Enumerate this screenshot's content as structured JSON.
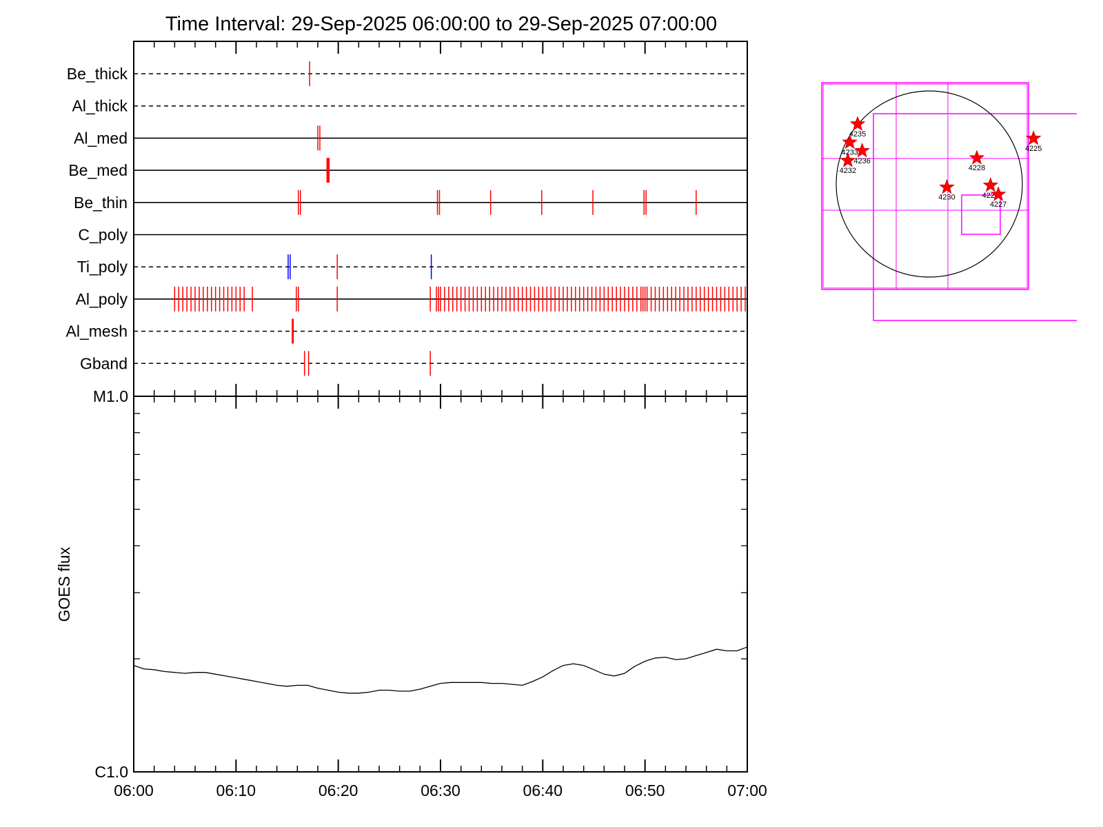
{
  "title": "Time Interval: 29-Sep-2025 06:00:00 to 29-Sep-2025 07:00:00",
  "colors": {
    "red": "#ff0000",
    "blue": "#0000ff",
    "magenta": "#ff00ff",
    "black": "#000000"
  },
  "chart_data": [
    {
      "type": "event-raster",
      "title": "Time Interval: 29-Sep-2025 06:00:00 to 29-Sep-2025 07:00:00",
      "x_unit": "minutes after 06:00",
      "xlim": [
        0,
        60
      ],
      "rows": [
        {
          "name": "Be_thick",
          "line": "dashed",
          "events": [
            {
              "t": 17.2,
              "color": "red"
            }
          ]
        },
        {
          "name": "Al_thick",
          "line": "dashed",
          "events": []
        },
        {
          "name": "Al_med",
          "line": "solid",
          "events": [
            {
              "t": 18.0,
              "color": "red"
            },
            {
              "t": 18.2,
              "color": "red"
            }
          ]
        },
        {
          "name": "Be_med",
          "line": "solid",
          "events": [
            {
              "t": 18.9,
              "color": "red"
            },
            {
              "t": 19.0,
              "color": "red"
            },
            {
              "t": 19.1,
              "color": "red"
            }
          ]
        },
        {
          "name": "Be_thin",
          "line": "solid",
          "events": [
            {
              "t": 16.1,
              "color": "red"
            },
            {
              "t": 16.3,
              "color": "red"
            },
            {
              "t": 29.7,
              "color": "red"
            },
            {
              "t": 29.9,
              "color": "red"
            },
            {
              "t": 34.9,
              "color": "red"
            },
            {
              "t": 39.9,
              "color": "red"
            },
            {
              "t": 44.9,
              "color": "red"
            },
            {
              "t": 49.9,
              "color": "red"
            },
            {
              "t": 50.1,
              "color": "red"
            },
            {
              "t": 55.0,
              "color": "red"
            }
          ]
        },
        {
          "name": "C_poly",
          "line": "solid",
          "events": []
        },
        {
          "name": "Ti_poly",
          "line": "dashed",
          "events": [
            {
              "t": 15.1,
              "color": "blue"
            },
            {
              "t": 15.3,
              "color": "blue"
            },
            {
              "t": 19.9,
              "color": "red"
            },
            {
              "t": 29.1,
              "color": "blue"
            }
          ]
        },
        {
          "name": "Al_poly",
          "line": "solid",
          "events": [
            {
              "t": 4.0,
              "color": "red"
            },
            {
              "t": 4.4,
              "color": "red"
            },
            {
              "t": 4.8,
              "color": "red"
            },
            {
              "t": 5.2,
              "color": "red"
            },
            {
              "t": 5.6,
              "color": "red"
            },
            {
              "t": 6.0,
              "color": "red"
            },
            {
              "t": 6.4,
              "color": "red"
            },
            {
              "t": 6.8,
              "color": "red"
            },
            {
              "t": 7.2,
              "color": "red"
            },
            {
              "t": 7.6,
              "color": "red"
            },
            {
              "t": 8.0,
              "color": "red"
            },
            {
              "t": 8.4,
              "color": "red"
            },
            {
              "t": 8.8,
              "color": "red"
            },
            {
              "t": 9.2,
              "color": "red"
            },
            {
              "t": 9.6,
              "color": "red"
            },
            {
              "t": 10.0,
              "color": "red"
            },
            {
              "t": 10.4,
              "color": "red"
            },
            {
              "t": 10.8,
              "color": "red"
            },
            {
              "t": 11.6,
              "color": "red"
            },
            {
              "t": 15.9,
              "color": "red"
            },
            {
              "t": 16.1,
              "color": "red"
            },
            {
              "t": 19.9,
              "color": "red"
            },
            {
              "t": 29.0,
              "color": "red"
            },
            {
              "t": 29.6,
              "color": "red"
            },
            {
              "t": 29.8,
              "color": "red"
            },
            {
              "t": 30.0,
              "color": "red"
            },
            {
              "t": 30.4,
              "color": "red"
            },
            {
              "t": 30.8,
              "color": "red"
            },
            {
              "t": 31.2,
              "color": "red"
            },
            {
              "t": 31.6,
              "color": "red"
            },
            {
              "t": 32.0,
              "color": "red"
            },
            {
              "t": 32.4,
              "color": "red"
            },
            {
              "t": 32.8,
              "color": "red"
            },
            {
              "t": 33.2,
              "color": "red"
            },
            {
              "t": 33.6,
              "color": "red"
            },
            {
              "t": 34.0,
              "color": "red"
            },
            {
              "t": 34.4,
              "color": "red"
            },
            {
              "t": 34.8,
              "color": "red"
            },
            {
              "t": 35.2,
              "color": "red"
            },
            {
              "t": 35.6,
              "color": "red"
            },
            {
              "t": 36.0,
              "color": "red"
            },
            {
              "t": 36.4,
              "color": "red"
            },
            {
              "t": 36.8,
              "color": "red"
            },
            {
              "t": 37.2,
              "color": "red"
            },
            {
              "t": 37.6,
              "color": "red"
            },
            {
              "t": 38.0,
              "color": "red"
            },
            {
              "t": 38.4,
              "color": "red"
            },
            {
              "t": 38.8,
              "color": "red"
            },
            {
              "t": 39.2,
              "color": "red"
            },
            {
              "t": 39.6,
              "color": "red"
            },
            {
              "t": 40.0,
              "color": "red"
            },
            {
              "t": 40.4,
              "color": "red"
            },
            {
              "t": 40.8,
              "color": "red"
            },
            {
              "t": 41.2,
              "color": "red"
            },
            {
              "t": 41.6,
              "color": "red"
            },
            {
              "t": 42.0,
              "color": "red"
            },
            {
              "t": 42.4,
              "color": "red"
            },
            {
              "t": 42.8,
              "color": "red"
            },
            {
              "t": 43.2,
              "color": "red"
            },
            {
              "t": 43.6,
              "color": "red"
            },
            {
              "t": 44.0,
              "color": "red"
            },
            {
              "t": 44.4,
              "color": "red"
            },
            {
              "t": 44.8,
              "color": "red"
            },
            {
              "t": 45.2,
              "color": "red"
            },
            {
              "t": 45.6,
              "color": "red"
            },
            {
              "t": 46.0,
              "color": "red"
            },
            {
              "t": 46.4,
              "color": "red"
            },
            {
              "t": 46.8,
              "color": "red"
            },
            {
              "t": 47.2,
              "color": "red"
            },
            {
              "t": 47.6,
              "color": "red"
            },
            {
              "t": 48.0,
              "color": "red"
            },
            {
              "t": 48.4,
              "color": "red"
            },
            {
              "t": 48.8,
              "color": "red"
            },
            {
              "t": 49.2,
              "color": "red"
            },
            {
              "t": 49.6,
              "color": "red"
            },
            {
              "t": 49.8,
              "color": "red"
            },
            {
              "t": 50.0,
              "color": "red"
            },
            {
              "t": 50.2,
              "color": "red"
            },
            {
              "t": 50.6,
              "color": "red"
            },
            {
              "t": 51.0,
              "color": "red"
            },
            {
              "t": 51.4,
              "color": "red"
            },
            {
              "t": 51.8,
              "color": "red"
            },
            {
              "t": 52.2,
              "color": "red"
            },
            {
              "t": 52.6,
              "color": "red"
            },
            {
              "t": 53.0,
              "color": "red"
            },
            {
              "t": 53.4,
              "color": "red"
            },
            {
              "t": 53.8,
              "color": "red"
            },
            {
              "t": 54.2,
              "color": "red"
            },
            {
              "t": 54.6,
              "color": "red"
            },
            {
              "t": 55.0,
              "color": "red"
            },
            {
              "t": 55.4,
              "color": "red"
            },
            {
              "t": 55.8,
              "color": "red"
            },
            {
              "t": 56.2,
              "color": "red"
            },
            {
              "t": 56.6,
              "color": "red"
            },
            {
              "t": 57.0,
              "color": "red"
            },
            {
              "t": 57.4,
              "color": "red"
            },
            {
              "t": 57.8,
              "color": "red"
            },
            {
              "t": 58.2,
              "color": "red"
            },
            {
              "t": 58.6,
              "color": "red"
            },
            {
              "t": 59.0,
              "color": "red"
            },
            {
              "t": 59.4,
              "color": "red"
            },
            {
              "t": 59.8,
              "color": "red"
            }
          ]
        },
        {
          "name": "Al_mesh",
          "line": "dashed",
          "events": [
            {
              "t": 15.5,
              "color": "red"
            },
            {
              "t": 15.6,
              "color": "red"
            }
          ]
        },
        {
          "name": "Gband",
          "line": "dashed",
          "events": [
            {
              "t": 16.7,
              "color": "red"
            },
            {
              "t": 17.1,
              "color": "red"
            },
            {
              "t": 29.0,
              "color": "red"
            }
          ]
        }
      ]
    },
    {
      "type": "line",
      "title": "",
      "xlabel": "",
      "ylabel": "GOES flux",
      "xlim": [
        0,
        60
      ],
      "ylim": [
        1e-06,
        1e-05
      ],
      "yscale": "log",
      "x_ticks": [
        "06:00",
        "06:10",
        "06:20",
        "06:30",
        "06:40",
        "06:50",
        "07:00"
      ],
      "y_ticks": [
        "C1.0",
        "M1.0"
      ],
      "series": [
        {
          "x": [
            0,
            1,
            2,
            3,
            4,
            5,
            6,
            7,
            8,
            9,
            10,
            11,
            12,
            13,
            14,
            15,
            16,
            17,
            18,
            19,
            20,
            21,
            22,
            23,
            24,
            25,
            26,
            27,
            28,
            29,
            30,
            31,
            32,
            33,
            34,
            35,
            36,
            37,
            38,
            39,
            40,
            41,
            42,
            43,
            44,
            45,
            46,
            47,
            48,
            49,
            50,
            51,
            52,
            53,
            54,
            55,
            56,
            57,
            58,
            59,
            60
          ],
          "y": [
            1.92e-06,
            1.88e-06,
            1.87e-06,
            1.85e-06,
            1.84e-06,
            1.83e-06,
            1.84e-06,
            1.84e-06,
            1.82e-06,
            1.8e-06,
            1.78e-06,
            1.76e-06,
            1.74e-06,
            1.72e-06,
            1.7e-06,
            1.69e-06,
            1.7e-06,
            1.7e-06,
            1.67e-06,
            1.65e-06,
            1.63e-06,
            1.62e-06,
            1.62e-06,
            1.63e-06,
            1.65e-06,
            1.65e-06,
            1.64e-06,
            1.64e-06,
            1.66e-06,
            1.69e-06,
            1.72e-06,
            1.73e-06,
            1.73e-06,
            1.73e-06,
            1.73e-06,
            1.72e-06,
            1.72e-06,
            1.71e-06,
            1.7e-06,
            1.74e-06,
            1.79e-06,
            1.86e-06,
            1.92e-06,
            1.94e-06,
            1.92e-06,
            1.87e-06,
            1.82e-06,
            1.8e-06,
            1.83e-06,
            1.91e-06,
            1.97e-06,
            2.01e-06,
            2.02e-06,
            1.99e-06,
            2e-06,
            2.04e-06,
            2.08e-06,
            2.12e-06,
            2.1e-06,
            2.1e-06,
            2.15e-06
          ]
        }
      ]
    },
    {
      "type": "scatter",
      "title": "",
      "description": "solar disk map with active regions",
      "points": [
        {
          "label": "4235",
          "x": -1.1,
          "y": 0.92
        },
        {
          "label": "4233",
          "x": -1.22,
          "y": 0.64
        },
        {
          "label": "4236",
          "x": -1.03,
          "y": 0.51
        },
        {
          "label": "4232",
          "x": -1.25,
          "y": 0.36
        },
        {
          "label": "4228",
          "x": 0.73,
          "y": 0.4
        },
        {
          "label": "4230",
          "x": 0.27,
          "y": -0.05
        },
        {
          "label": "4226",
          "x": 0.94,
          "y": -0.02
        },
        {
          "label": "4227",
          "x": 1.06,
          "y": -0.16
        },
        {
          "label": "4225",
          "x": 1.6,
          "y": 0.7
        }
      ]
    }
  ]
}
